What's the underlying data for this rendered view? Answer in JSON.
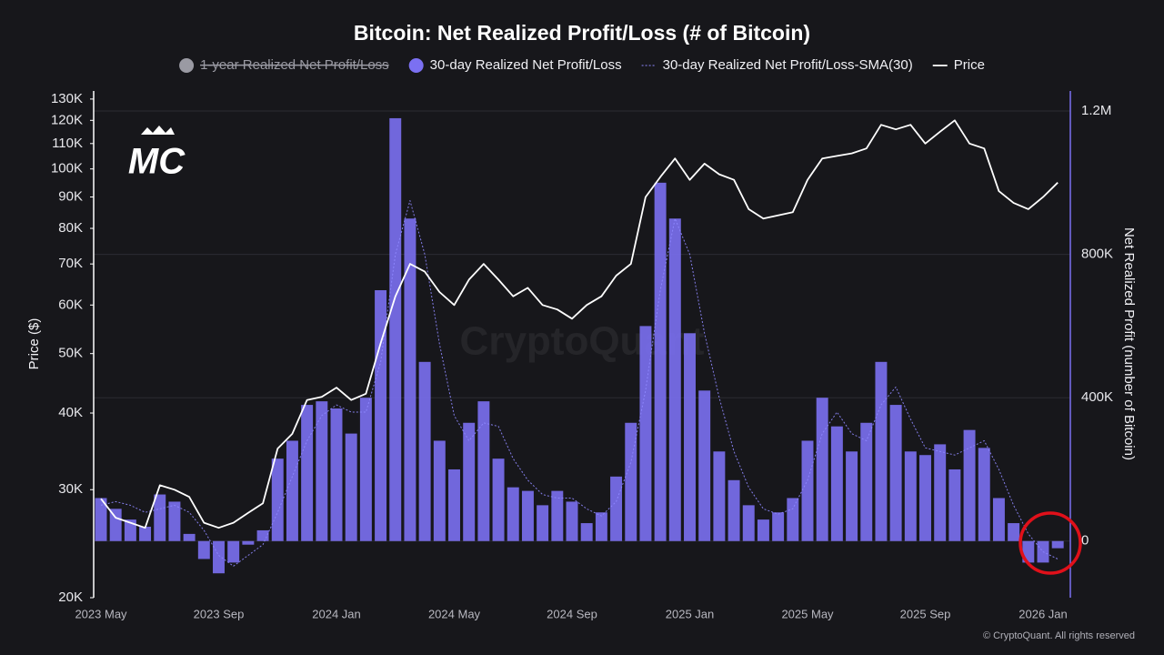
{
  "chart_data": {
    "type": "combo",
    "title": "Bitcoin: Net Realized Profit/Loss (# of Bitcoin)",
    "logo": "MC",
    "watermark": "CryptoQuant",
    "footer": "© CryptoQuant. All rights reserved",
    "ylabel": "Price ($)",
    "y2label": "Net Realized Profit (number of Bitcoin)",
    "y_scale": "log",
    "grid": true,
    "categories": [
      "2023 May",
      null,
      null,
      null,
      null,
      null,
      null,
      null,
      "2023 Sep",
      null,
      null,
      null,
      null,
      null,
      null,
      null,
      "2024 Jan",
      null,
      null,
      null,
      null,
      null,
      null,
      null,
      "2024 May",
      null,
      null,
      null,
      null,
      null,
      null,
      null,
      "2024 Sep",
      null,
      null,
      null,
      null,
      null,
      null,
      null,
      "2025 Jan",
      null,
      null,
      null,
      null,
      null,
      null,
      null,
      "2025 May",
      null,
      null,
      null,
      null,
      null,
      null,
      null,
      "2025 Sep",
      null,
      null,
      null,
      null,
      null,
      null,
      null,
      "2026 Jan",
      null
    ],
    "ylim": [
      20000,
      134000
    ],
    "yticks": [
      {
        "value": 20000,
        "label": "20K"
      },
      {
        "value": 30000,
        "label": "30K"
      },
      {
        "value": 40000,
        "label": "40K"
      },
      {
        "value": 50000,
        "label": "50K"
      },
      {
        "value": 60000,
        "label": "60K"
      },
      {
        "value": 70000,
        "label": "70K"
      },
      {
        "value": 80000,
        "label": "80K"
      },
      {
        "value": 90000,
        "label": "90K"
      },
      {
        "value": 100000,
        "label": "100K"
      },
      {
        "value": 110000,
        "label": "110K"
      },
      {
        "value": 120000,
        "label": "120K"
      },
      {
        "value": 130000,
        "label": "130K"
      }
    ],
    "y2lim": [
      -158000,
      1256000
    ],
    "y2ticks": [
      0,
      {
        "value": 400000,
        "label": "400K"
      },
      {
        "value": 800000,
        "label": "800K"
      },
      {
        "value": 1200000,
        "label": "1.2M"
      }
    ],
    "series": [
      {
        "name": "1-year Realized Net Profit/Loss",
        "color": "#9a9aa3",
        "kind": "dot",
        "visible": false
      },
      {
        "name": "30-day Realized Net Profit/Loss",
        "color": "#7b70f2",
        "kind": "bar",
        "axis": "y2",
        "values": [
          120000,
          90000,
          60000,
          40000,
          130000,
          110000,
          20000,
          -50000,
          -90000,
          -60000,
          -10000,
          30000,
          230000,
          280000,
          380000,
          390000,
          370000,
          300000,
          400000,
          700000,
          1180000,
          900000,
          500000,
          280000,
          200000,
          330000,
          390000,
          230000,
          150000,
          140000,
          100000,
          140000,
          110000,
          50000,
          80000,
          180000,
          330000,
          600000,
          1000000,
          900000,
          580000,
          420000,
          250000,
          170000,
          100000,
          60000,
          80000,
          120000,
          280000,
          400000,
          320000,
          250000,
          330000,
          500000,
          380000,
          250000,
          240000,
          270000,
          200000,
          310000,
          260000,
          120000,
          50000,
          -60000,
          -60000,
          -20000
        ]
      },
      {
        "name": "30-day Realized Net Profit/Loss-SMA(30)",
        "color": "#8f88ff",
        "kind": "dashed",
        "axis": "y2",
        "values": [
          100000,
          110000,
          100000,
          80000,
          90000,
          100000,
          80000,
          30000,
          -40000,
          -70000,
          -40000,
          -10000,
          80000,
          180000,
          280000,
          350000,
          380000,
          360000,
          360000,
          500000,
          800000,
          950000,
          800000,
          550000,
          350000,
          280000,
          330000,
          320000,
          230000,
          170000,
          130000,
          120000,
          120000,
          90000,
          70000,
          110000,
          220000,
          420000,
          700000,
          900000,
          800000,
          580000,
          400000,
          250000,
          150000,
          90000,
          75000,
          90000,
          170000,
          300000,
          360000,
          300000,
          280000,
          380000,
          430000,
          340000,
          260000,
          250000,
          240000,
          260000,
          280000,
          200000,
          100000,
          20000,
          -30000,
          -50000
        ]
      },
      {
        "name": "Price",
        "color": "#ffffff",
        "kind": "line",
        "axis": "y",
        "values": [
          29000,
          27000,
          26500,
          26000,
          30500,
          30000,
          29200,
          26500,
          26000,
          26500,
          27500,
          28500,
          35000,
          37000,
          42000,
          42500,
          44000,
          42000,
          43000,
          52000,
          62000,
          70000,
          68000,
          63000,
          60000,
          66000,
          70000,
          66000,
          62000,
          64000,
          60000,
          59000,
          57000,
          60000,
          62000,
          67000,
          70000,
          90000,
          97000,
          104000,
          96000,
          102000,
          98000,
          96000,
          86000,
          83000,
          84000,
          85000,
          96000,
          104000,
          105000,
          106000,
          108000,
          118000,
          116000,
          118000,
          110000,
          115000,
          120000,
          110000,
          108000,
          92000,
          88000,
          86000,
          90000,
          95000
        ]
      }
    ]
  }
}
